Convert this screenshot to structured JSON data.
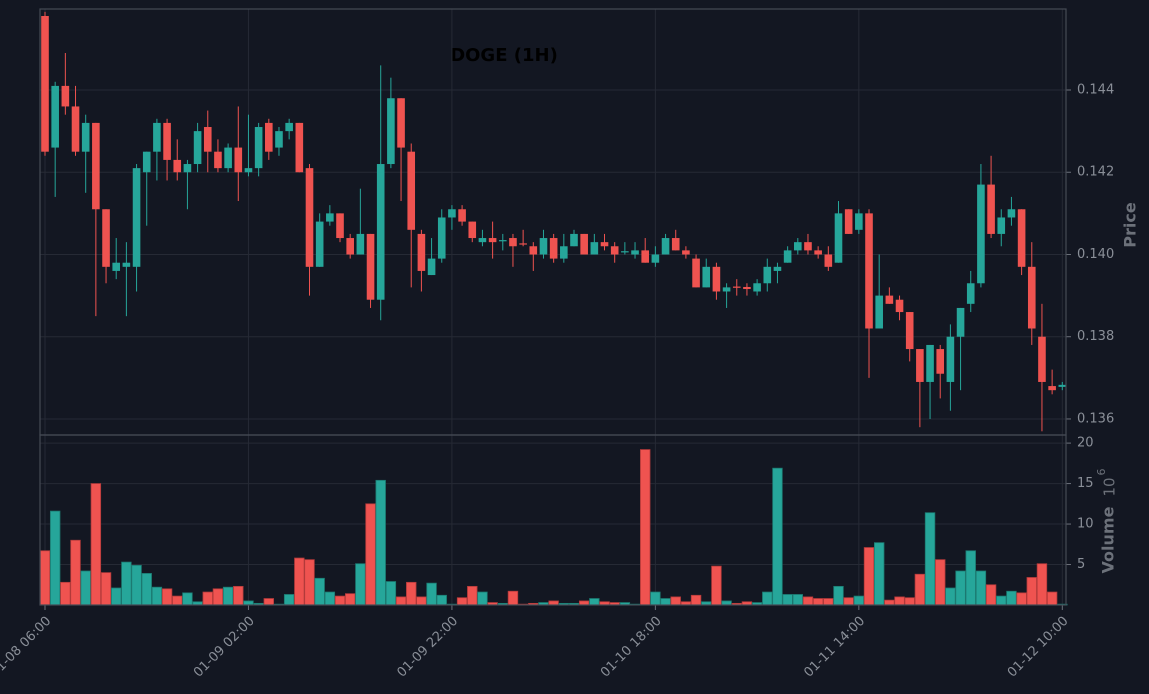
{
  "chart_data": {
    "type": "candlestick",
    "title": "DOGE (1H)",
    "categories": [
      "01-08 06:00",
      null,
      null,
      null,
      null,
      null,
      null,
      null,
      null,
      null,
      null,
      null,
      null,
      null,
      null,
      null,
      null,
      null,
      null,
      null,
      "01-09 02:00",
      null,
      null,
      null,
      null,
      null,
      null,
      null,
      null,
      null,
      null,
      null,
      null,
      null,
      null,
      null,
      null,
      null,
      null,
      null,
      "01-09 22:00",
      null,
      null,
      null,
      null,
      null,
      null,
      null,
      null,
      null,
      null,
      null,
      null,
      null,
      null,
      null,
      null,
      null,
      null,
      null,
      "01-10 18:00",
      null,
      null,
      null,
      null,
      null,
      null,
      null,
      null,
      null,
      null,
      null,
      null,
      null,
      null,
      null,
      null,
      null,
      null,
      null,
      "01-11 14:00",
      null,
      null,
      null,
      null,
      null,
      null,
      null,
      null,
      null,
      null,
      null,
      null,
      null,
      null,
      null,
      null,
      null,
      null,
      null,
      "01-12 10:00"
    ],
    "open": [
      0.1458,
      0.1426,
      0.1441,
      0.1436,
      0.1425,
      0.1432,
      0.1411,
      0.1396,
      0.1397,
      0.1397,
      0.142,
      0.1425,
      0.1432,
      0.1423,
      0.142,
      0.1422,
      0.1431,
      0.1425,
      0.1421,
      0.1426,
      0.142,
      0.1421,
      0.1432,
      0.1426,
      0.143,
      0.1432,
      0.1421,
      0.1397,
      0.1408,
      0.141,
      0.1404,
      0.14,
      0.1405,
      0.1389,
      0.1422,
      0.1438,
      0.1425,
      0.1405,
      0.1395,
      0.1399,
      0.1409,
      0.1411,
      0.1408,
      0.1403,
      0.1404,
      0.14032,
      0.1404,
      0.14027,
      0.1402,
      0.14,
      0.1404,
      0.1399,
      0.1402,
      0.1405,
      0.14,
      0.1403,
      0.1402,
      0.14005,
      0.14,
      0.1401,
      0.1398,
      0.14,
      0.1404,
      0.1401,
      0.1399,
      0.1392,
      0.1397,
      0.1391,
      0.13922,
      0.13921,
      0.1391,
      0.1393,
      0.1396,
      0.1398,
      0.1401,
      0.1403,
      0.1401,
      0.14,
      0.1398,
      0.1411,
      0.1406,
      0.141,
      0.1382,
      0.139,
      0.1389,
      0.1386,
      0.1377,
      0.1369,
      0.1377,
      0.1369,
      0.138,
      0.1388,
      0.1393,
      0.1417,
      0.1405,
      0.1409,
      0.1411,
      0.1397,
      0.138,
      0.1368,
      0.13678
    ],
    "high": [
      0.1459,
      0.1442,
      0.1449,
      0.1441,
      0.1434,
      0.1432,
      0.1411,
      0.1404,
      0.1403,
      0.1422,
      0.1425,
      0.1433,
      0.1433,
      0.1428,
      0.1423,
      0.1432,
      0.1435,
      0.1428,
      0.1427,
      0.1436,
      0.1434,
      0.1432,
      0.1433,
      0.1431,
      0.1433,
      0.1432,
      0.1422,
      0.141,
      0.1412,
      0.141,
      0.1405,
      0.1416,
      0.1405,
      0.1446,
      0.1443,
      0.1438,
      0.1427,
      0.1406,
      0.1404,
      0.1411,
      0.1412,
      0.1412,
      0.1408,
      0.1406,
      0.1408,
      0.1405,
      0.1405,
      0.1406,
      0.1403,
      0.1406,
      0.1405,
      0.1405,
      0.1406,
      0.1405,
      0.1405,
      0.1405,
      0.1403,
      0.1403,
      0.1403,
      0.1404,
      0.1402,
      0.1405,
      0.1406,
      0.1402,
      0.14,
      0.1399,
      0.1398,
      0.1393,
      0.1394,
      0.1393,
      0.1394,
      0.1399,
      0.1398,
      0.1402,
      0.1404,
      0.1405,
      0.1402,
      0.1402,
      0.1413,
      0.1411,
      0.1411,
      0.1411,
      0.14,
      0.1392,
      0.139,
      0.1386,
      0.1377,
      0.1378,
      0.1378,
      0.1383,
      0.1387,
      0.1396,
      0.1422,
      0.1424,
      0.1411,
      0.1414,
      0.1411,
      0.1403,
      0.1388,
      0.1372,
      0.1369
    ],
    "low": [
      0.1424,
      0.1414,
      0.1434,
      0.1424,
      0.1415,
      0.1385,
      0.1393,
      0.1394,
      0.1385,
      0.1391,
      0.1407,
      0.1418,
      0.1418,
      0.1418,
      0.1411,
      0.142,
      0.142,
      0.142,
      0.142,
      0.1413,
      0.1419,
      0.1419,
      0.1423,
      0.1424,
      0.1428,
      0.142,
      0.139,
      0.1397,
      0.1407,
      0.1403,
      0.1399,
      0.14,
      0.1387,
      0.1384,
      0.1421,
      0.1413,
      0.1392,
      0.1391,
      0.1395,
      0.1398,
      0.1406,
      0.1407,
      0.1403,
      0.1402,
      0.1399,
      0.1401,
      0.1397,
      0.1402,
      0.1396,
      0.1399,
      0.1398,
      0.1398,
      0.1402,
      0.14,
      0.14,
      0.1401,
      0.1398,
      0.14,
      0.1399,
      0.1398,
      0.1397,
      0.14,
      0.1401,
      0.1399,
      0.1392,
      0.1392,
      0.1389,
      0.1387,
      0.139,
      0.139,
      0.139,
      0.1391,
      0.1393,
      0.1398,
      0.14,
      0.14,
      0.1399,
      0.1396,
      0.1398,
      0.1405,
      0.1405,
      0.137,
      0.1382,
      0.1388,
      0.1384,
      0.1374,
      0.1358,
      0.136,
      0.1365,
      0.1362,
      0.1367,
      0.1386,
      0.1392,
      0.1404,
      0.1402,
      0.1407,
      0.1395,
      0.1378,
      0.1357,
      0.1366,
      0.1367
    ],
    "close": [
      0.1425,
      0.1441,
      0.1436,
      0.1425,
      0.1432,
      0.1411,
      0.1397,
      0.1398,
      0.1398,
      0.1421,
      0.1425,
      0.1432,
      0.1423,
      0.142,
      0.1422,
      0.143,
      0.1425,
      0.1421,
      0.1426,
      0.142,
      0.1421,
      0.1431,
      0.1425,
      0.143,
      0.1432,
      0.142,
      0.1397,
      0.1408,
      0.141,
      0.1404,
      0.14,
      0.1405,
      0.1389,
      0.1422,
      0.1438,
      0.1426,
      0.1406,
      0.1396,
      0.1399,
      0.1409,
      0.1411,
      0.1408,
      0.1404,
      0.1404,
      0.1403,
      0.14035,
      0.1402,
      0.14025,
      0.14,
      0.1404,
      0.1399,
      0.1402,
      0.1405,
      0.14,
      0.1403,
      0.1402,
      0.14,
      0.14008,
      0.1401,
      0.1398,
      0.14,
      0.1404,
      0.1401,
      0.14,
      0.1392,
      0.1397,
      0.1391,
      0.1392,
      0.13919,
      0.13916,
      0.1393,
      0.1397,
      0.1397,
      0.1401,
      0.1403,
      0.1401,
      0.14,
      0.1397,
      0.141,
      0.1405,
      0.141,
      0.1382,
      0.139,
      0.1388,
      0.1386,
      0.1377,
      0.1369,
      0.1378,
      0.1371,
      0.138,
      0.1387,
      0.1393,
      0.1417,
      0.1405,
      0.1409,
      0.1411,
      0.1397,
      0.1382,
      0.1369,
      0.1367,
      0.13683
    ],
    "volume": [
      6.7,
      11.6,
      2.8,
      8.0,
      4.2,
      15.0,
      4.0,
      2.1,
      5.3,
      4.9,
      3.9,
      2.2,
      2.0,
      1.1,
      1.5,
      0.4,
      1.6,
      2.0,
      2.2,
      2.3,
      0.5,
      0.2,
      0.8,
      0.1,
      1.3,
      5.8,
      5.6,
      3.3,
      1.6,
      1.1,
      1.4,
      5.1,
      12.5,
      15.4,
      2.9,
      1.0,
      2.8,
      1.0,
      2.7,
      1.2,
      0.1,
      0.9,
      2.3,
      1.6,
      0.3,
      0.2,
      1.7,
      0.1,
      0.2,
      0.3,
      0.5,
      0.2,
      0.2,
      0.5,
      0.8,
      0.4,
      0.3,
      0.3,
      0.1,
      19.2,
      1.6,
      0.8,
      1.0,
      0.4,
      1.2,
      0.4,
      4.8,
      0.5,
      0.2,
      0.4,
      0.3,
      1.6,
      16.9,
      1.3,
      1.3,
      1.0,
      0.8,
      0.8,
      2.3,
      0.9,
      1.1,
      7.1,
      7.7,
      0.6,
      1.0,
      0.9,
      3.8,
      11.4,
      5.6,
      2.1,
      4.2,
      6.7,
      4.2,
      2.5,
      1.1,
      1.7,
      1.5,
      3.4,
      5.1,
      1.6,
      0.1
    ],
    "up_color": "#26a69a",
    "down_color": "#ef5350",
    "ylabel": "Price",
    "ylim": [
      0.13561,
      0.14597
    ],
    "yticks": [
      0.136,
      0.138,
      {
        "value": 0.14,
        "label": "0.140"
      },
      0.142,
      0.144
    ],
    "volume_ylabel": "Volume",
    "volume_scale": {
      "base": "10",
      "exponent": "6"
    },
    "volume_ylim": [
      0,
      21
    ],
    "volume_yticks": [
      5,
      10,
      15,
      20
    ],
    "grid": true
  }
}
